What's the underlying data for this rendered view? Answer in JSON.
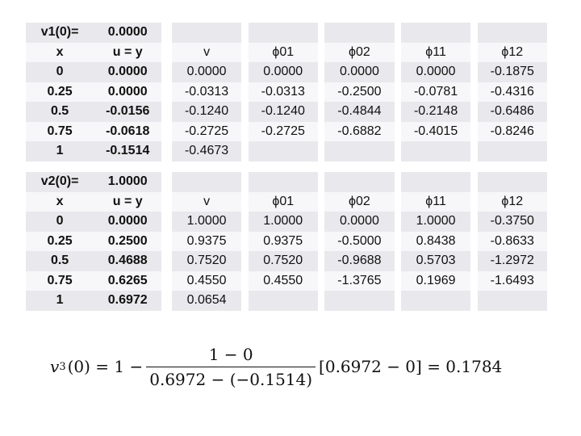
{
  "table1": {
    "label": "v1(0)=",
    "label_value": "0.0000",
    "headers": [
      "x",
      "u = y",
      "v",
      "ϕ01",
      "ϕ02",
      "ϕ11",
      "ϕ12"
    ],
    "rows": [
      [
        "0",
        "0.0000",
        "0.0000",
        "0.0000",
        "0.0000",
        "0.0000",
        "-0.1875"
      ],
      [
        "0.25",
        "0.0000",
        "-0.0313",
        "-0.0313",
        "-0.2500",
        "-0.0781",
        "-0.4316"
      ],
      [
        "0.5",
        "-0.0156",
        "-0.1240",
        "-0.1240",
        "-0.4844",
        "-0.2148",
        "-0.6486"
      ],
      [
        "0.75",
        "-0.0618",
        "-0.2725",
        "-0.2725",
        "-0.6882",
        "-0.4015",
        "-0.8246"
      ],
      [
        "1",
        "-0.1514",
        "-0.4673",
        "",
        "",
        "",
        ""
      ]
    ]
  },
  "table2": {
    "label": "v2(0)=",
    "label_value": "1.0000",
    "headers": [
      "x",
      "u = y",
      "v",
      "ϕ01",
      "ϕ02",
      "ϕ11",
      "ϕ12"
    ],
    "rows": [
      [
        "0",
        "0.0000",
        "1.0000",
        "1.0000",
        "0.0000",
        "1.0000",
        "-0.3750"
      ],
      [
        "0.25",
        "0.2500",
        "0.9375",
        "0.9375",
        "-0.5000",
        "0.8438",
        "-0.8633"
      ],
      [
        "0.5",
        "0.4688",
        "0.7520",
        "0.7520",
        "-0.9688",
        "0.5703",
        "-1.2972"
      ],
      [
        "0.75",
        "0.6265",
        "0.4550",
        "0.4550",
        "-1.3765",
        "0.1969",
        "-1.6493"
      ],
      [
        "1",
        "0.6972",
        "0.0654",
        "",
        "",
        "",
        ""
      ]
    ]
  },
  "colors": {
    "highlight": "#e02020",
    "row_dark": "#e9e9ed",
    "row_light": "#f7f7f9"
  },
  "formula": {
    "lhs_var": "v",
    "lhs_sub": "3",
    "lhs_arg": "(0) = 1 −",
    "numerator": "1 − 0",
    "denominator": "0.6972 − (−0.1514)",
    "tail": "[0.6972 − 0] = 0.1784"
  }
}
